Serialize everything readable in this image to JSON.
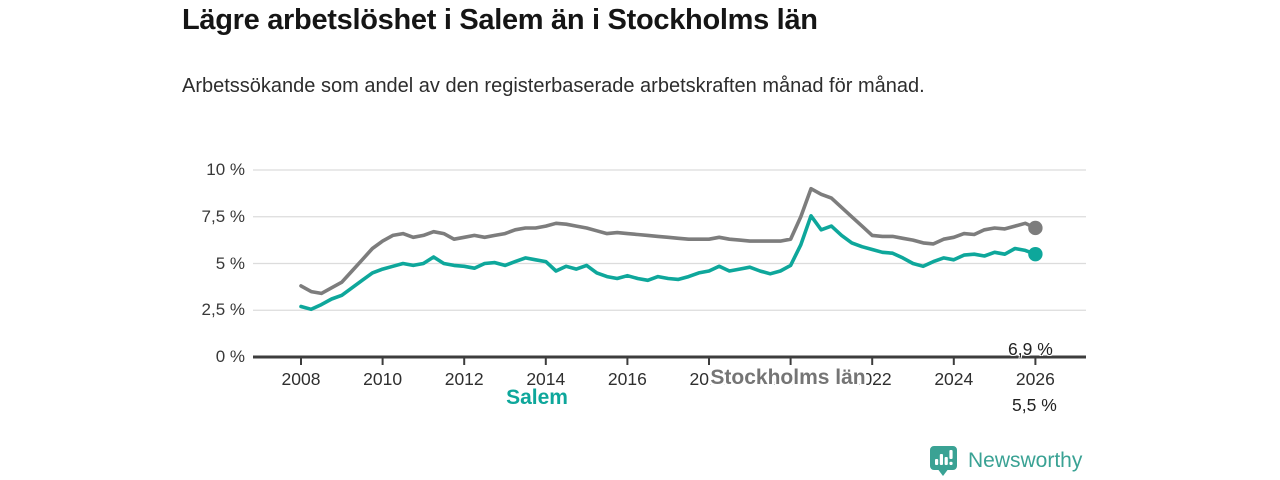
{
  "header": {
    "title": "Lägre arbetslöshet i Salem än i Stockholms län",
    "subtitle": "Arbetssökande som andel av den registerbaserade arbetskraften månad för månad."
  },
  "chart_data": {
    "type": "line",
    "title": "Lägre arbetslöshet i Salem än i Stockholms län",
    "xlabel": "",
    "ylabel": "",
    "ylim": [
      0,
      10
    ],
    "xlim": [
      2006.8,
      2027.2
    ],
    "grid": "horizontal",
    "legend_position": "inline-on-lines",
    "unit": "%",
    "x_ticks": [
      2008,
      2010,
      2012,
      2014,
      2016,
      2018,
      2020,
      2022,
      2024,
      2026
    ],
    "y_ticks": [
      {
        "value": 0,
        "label": "0 %"
      },
      {
        "value": 2.5,
        "label": "2,5 %"
      },
      {
        "value": 5,
        "label": "5 %"
      },
      {
        "value": 7.5,
        "label": "7,5 %"
      },
      {
        "value": 10,
        "label": "10 %"
      }
    ],
    "x": [
      2008,
      2008.25,
      2008.5,
      2008.75,
      2009,
      2009.25,
      2009.5,
      2009.75,
      2010,
      2010.25,
      2010.5,
      2010.75,
      2011,
      2011.25,
      2011.5,
      2011.75,
      2012,
      2012.25,
      2012.5,
      2012.75,
      2013,
      2013.25,
      2013.5,
      2013.75,
      2014,
      2014.25,
      2014.5,
      2014.75,
      2015,
      2015.25,
      2015.5,
      2015.75,
      2016,
      2016.25,
      2016.5,
      2016.75,
      2017,
      2017.25,
      2017.5,
      2017.75,
      2018,
      2018.25,
      2018.5,
      2018.75,
      2019,
      2019.25,
      2019.5,
      2019.75,
      2020,
      2020.25,
      2020.5,
      2020.75,
      2021,
      2021.25,
      2021.5,
      2021.75,
      2022,
      2022.25,
      2022.5,
      2022.75,
      2023,
      2023.25,
      2023.5,
      2023.75,
      2024,
      2024.25,
      2024.5,
      2024.75,
      2025,
      2025.25,
      2025.5,
      2025.75,
      2026
    ],
    "series": [
      {
        "name": "Stockholms län",
        "color": "#7d7d7d",
        "end_label": "6,9 %",
        "end_value": 6.9,
        "values": [
          3.8,
          3.5,
          3.4,
          3.7,
          4.0,
          4.6,
          5.2,
          5.8,
          6.2,
          6.5,
          6.6,
          6.4,
          6.5,
          6.7,
          6.6,
          6.3,
          6.4,
          6.5,
          6.4,
          6.5,
          6.6,
          6.8,
          6.9,
          6.9,
          7.0,
          7.15,
          7.1,
          7.0,
          6.9,
          6.75,
          6.6,
          6.65,
          6.6,
          6.55,
          6.5,
          6.45,
          6.4,
          6.35,
          6.3,
          6.3,
          6.3,
          6.4,
          6.3,
          6.25,
          6.2,
          6.2,
          6.2,
          6.2,
          6.3,
          7.5,
          9.0,
          8.7,
          8.5,
          8.0,
          7.5,
          7.0,
          6.5,
          6.45,
          6.45,
          6.35,
          6.25,
          6.1,
          6.05,
          6.3,
          6.4,
          6.6,
          6.55,
          6.8,
          6.9,
          6.85,
          7.0,
          7.15,
          6.9
        ]
      },
      {
        "name": "Salem",
        "color": "#0ea79b",
        "end_label": "5,5 %",
        "end_value": 5.5,
        "values": [
          2.7,
          2.55,
          2.8,
          3.1,
          3.3,
          3.7,
          4.1,
          4.5,
          4.7,
          4.85,
          5.0,
          4.9,
          5.0,
          5.35,
          5.0,
          4.9,
          4.85,
          4.75,
          5.0,
          5.05,
          4.9,
          5.1,
          5.3,
          5.2,
          5.1,
          4.6,
          4.85,
          4.7,
          4.9,
          4.5,
          4.3,
          4.2,
          4.35,
          4.2,
          4.1,
          4.3,
          4.2,
          4.15,
          4.3,
          4.5,
          4.6,
          4.85,
          4.6,
          4.7,
          4.8,
          4.6,
          4.45,
          4.6,
          4.9,
          6.0,
          7.55,
          6.8,
          7.0,
          6.5,
          6.1,
          5.9,
          5.75,
          5.6,
          5.55,
          5.3,
          5.0,
          4.85,
          5.1,
          5.3,
          5.2,
          5.45,
          5.5,
          5.4,
          5.6,
          5.5,
          5.8,
          5.7,
          5.5
        ]
      }
    ]
  },
  "colors": {
    "grid": "#dcdcdc",
    "axis": "#3d3d3d",
    "brand_teal": "#3aa294"
  },
  "footer": {
    "brand": "Newsworthy"
  }
}
